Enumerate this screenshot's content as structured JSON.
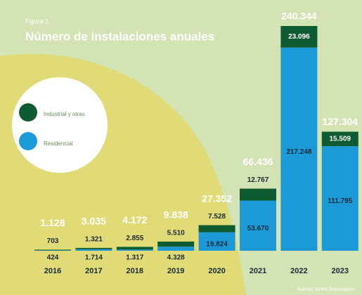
{
  "chart_data": {
    "type": "stacked-bar",
    "figure_label": "Figura 2",
    "title": "Número de instalaciones anuales",
    "categories": [
      "2016",
      "2017",
      "2018",
      "2019",
      "2020",
      "2021",
      "2022",
      "2023"
    ],
    "series": [
      {
        "name": "Residencial",
        "color": "#1b9ad7",
        "values": [
          424,
          1714,
          1317,
          4328,
          19824,
          53670,
          217248,
          111795
        ],
        "value_labels": [
          "424",
          "1.714",
          "1.317",
          "4.328",
          "19.824",
          "53.670",
          "217.248",
          "111.795"
        ]
      },
      {
        "name": "Industrial y otras",
        "color": "#0e5a31",
        "values": [
          703,
          1321,
          2855,
          5510,
          7528,
          12767,
          23096,
          15509
        ],
        "value_labels": [
          "703",
          "1.321",
          "2.855",
          "5.510",
          "7.528",
          "12.767",
          "23.096",
          "15.509"
        ]
      }
    ],
    "totals": {
      "values": [
        1128,
        3035,
        4172,
        9838,
        27352,
        66436,
        240344,
        127304
      ],
      "value_labels": [
        "1.128",
        "3.035",
        "4.172",
        "9.838",
        "27.352",
        "66.436",
        "240.344",
        "127.304"
      ]
    },
    "source": "Fuente: APPA Renovables"
  }
}
